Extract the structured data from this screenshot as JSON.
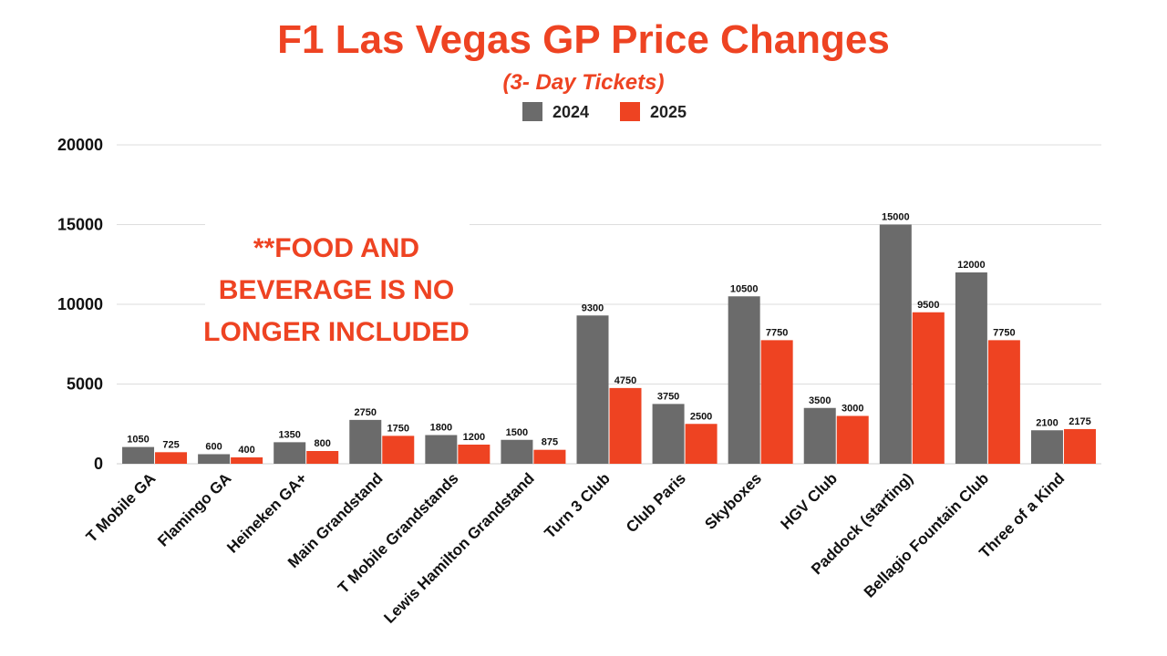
{
  "chart_data": {
    "type": "bar",
    "title": "F1 Las Vegas GP Price Changes",
    "subtitle": "(3- Day Tickets)",
    "xlabel": "",
    "ylabel": "",
    "ylim": [
      0,
      20000
    ],
    "yticks": [
      0,
      5000,
      10000,
      15000,
      20000
    ],
    "grid": true,
    "legend_position": "top-center",
    "categories": [
      "T Mobile GA",
      "Flamingo GA",
      "Heineken GA+",
      "Main Grandstand",
      "T Mobile Grandstands",
      "Lewis Hamilton Grandstand",
      "Turn 3 Club",
      "Club Paris",
      "Skyboxes",
      "HGV Club",
      "Paddock (starting)",
      "Bellagio Fountain Club",
      "Three of a Kind"
    ],
    "series": [
      {
        "name": "2024",
        "color": "#6b6b6b",
        "values": [
          1050,
          600,
          1350,
          2750,
          1800,
          1500,
          9300,
          3750,
          10500,
          3500,
          15000,
          12000,
          2100
        ]
      },
      {
        "name": "2025",
        "color": "#ee4322",
        "values": [
          725,
          400,
          800,
          1750,
          1200,
          875,
          4750,
          2500,
          7750,
          3000,
          9500,
          7750,
          2175
        ]
      }
    ],
    "annotation": [
      "**FOOD AND",
      "BEVERAGE IS NO",
      "LONGER INCLUDED"
    ],
    "accent_color": "#ee4322"
  }
}
